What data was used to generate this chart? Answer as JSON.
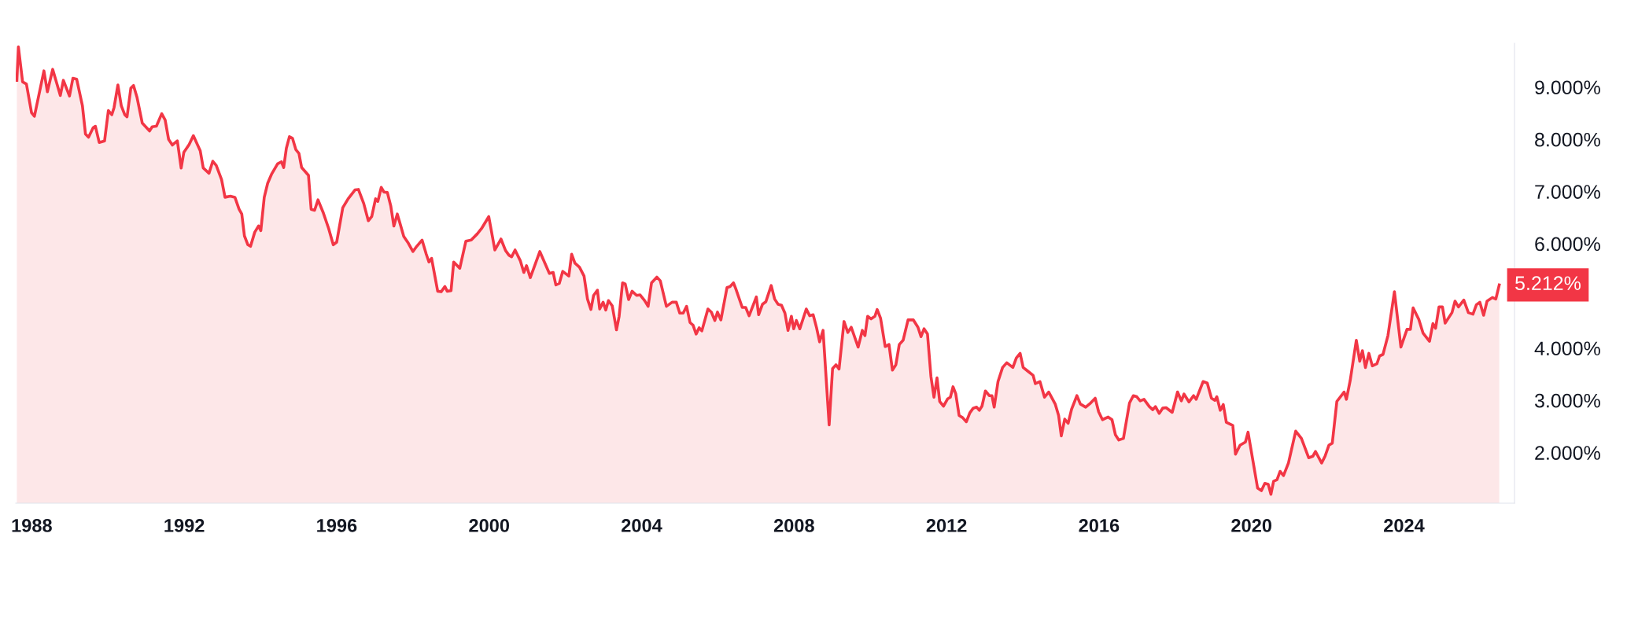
{
  "chart_data": {
    "type": "area",
    "x": [
      1987.61,
      1987.65,
      1987.76,
      1987.86,
      1987.995,
      1988.07,
      1988.32,
      1988.41,
      1988.55,
      1988.75,
      1988.83,
      1988.99,
      1989.08,
      1989.18,
      1989.33,
      1989.41,
      1989.49,
      1989.61,
      1989.67,
      1989.77,
      1989.91,
      1990.01,
      1990.1,
      1990.16,
      1990.26,
      1990.35,
      1990.44,
      1990.5,
      1990.6,
      1990.67,
      1990.76,
      1990.9,
      1991.09,
      1991.16,
      1991.27,
      1991.41,
      1991.5,
      1991.59,
      1991.69,
      1991.82,
      1991.92,
      1991.99,
      1992.13,
      1992.24,
      1992.42,
      1992.5,
      1992.65,
      1992.75,
      1992.84,
      1992.98,
      1993.07,
      1993.21,
      1993.33,
      1993.44,
      1993.51,
      1993.58,
      1993.67,
      1993.74,
      1993.85,
      1993.95,
      1994.01,
      1994.1,
      1994.19,
      1994.29,
      1994.45,
      1994.55,
      1994.61,
      1994.68,
      1994.76,
      1994.84,
      1994.93,
      1995.01,
      1995.08,
      1995.26,
      1995.33,
      1995.42,
      1995.51,
      1995.65,
      1995.79,
      1995.91,
      1996.0,
      1996.16,
      1996.3,
      1996.48,
      1996.57,
      1996.71,
      1996.83,
      1996.92,
      1997.02,
      1997.08,
      1997.17,
      1997.24,
      1997.33,
      1997.42,
      1997.5,
      1997.59,
      1997.76,
      1997.88,
      1998.0,
      1998.1,
      1998.24,
      1998.35,
      1998.42,
      1998.49,
      1998.65,
      1998.74,
      1998.84,
      1998.9,
      1999.0,
      1999.07,
      1999.23,
      1999.39,
      1999.53,
      1999.69,
      1999.8,
      1999.99,
      2000.15,
      2000.31,
      2000.43,
      2000.52,
      2000.59,
      2000.68,
      2000.82,
      2000.91,
      2000.98,
      2001.08,
      2001.33,
      2001.58,
      2001.68,
      2001.75,
      2001.84,
      2001.93,
      2002.09,
      2002.165,
      2002.25,
      2002.37,
      2002.49,
      2002.58,
      2002.67,
      2002.74,
      2002.84,
      2002.9,
      2002.99,
      2003.06,
      2003.13,
      2003.23,
      2003.34,
      2003.41,
      2003.5,
      2003.57,
      2003.66,
      2003.75,
      2003.87,
      2003.96,
      2004.08,
      2004.17,
      2004.26,
      2004.4,
      2004.49,
      2004.65,
      2004.8,
      2004.91,
      2005.0,
      2005.09,
      2005.18,
      2005.27,
      2005.35,
      2005.43,
      2005.51,
      2005.58,
      2005.74,
      2005.83,
      2005.92,
      2005.99,
      2006.08,
      2006.24,
      2006.32,
      2006.41,
      2006.47,
      2006.64,
      2006.73,
      2006.82,
      2007.01,
      2007.07,
      2007.17,
      2007.26,
      2007.4,
      2007.49,
      2007.58,
      2007.67,
      2007.76,
      2007.84,
      2007.93,
      2007.99,
      2008.06,
      2008.15,
      2008.32,
      2008.41,
      2008.5,
      2008.59,
      2008.67,
      2008.76,
      2008.92,
      2009.01,
      2009.1,
      2009.18,
      2009.31,
      2009.41,
      2009.5,
      2009.68,
      2009.79,
      2009.86,
      2009.93,
      2010.02,
      2010.12,
      2010.18,
      2010.27,
      2010.39,
      2010.49,
      2010.58,
      2010.67,
      2010.76,
      2010.86,
      2010.99,
      2011.13,
      2011.25,
      2011.33,
      2011.41,
      2011.5,
      2011.59,
      2011.67,
      2011.75,
      2011.82,
      2011.92,
      2012.03,
      2012.1,
      2012.17,
      2012.24,
      2012.33,
      2012.42,
      2012.52,
      2012.61,
      2012.7,
      2012.79,
      2012.86,
      2012.93,
      2013.02,
      2013.12,
      2013.19,
      2013.25,
      2013.35,
      2013.47,
      2013.58,
      2013.74,
      2013.83,
      2013.93,
      2014.01,
      2014.13,
      2014.27,
      2014.33,
      2014.45,
      2014.57,
      2014.68,
      2014.85,
      2014.94,
      2015.01,
      2015.1,
      2015.19,
      2015.28,
      2015.42,
      2015.51,
      2015.65,
      2015.78,
      2015.9,
      2015.99,
      2016.09,
      2016.24,
      2016.34,
      2016.43,
      2016.52,
      2016.64,
      2016.8,
      2016.9,
      2016.99,
      2017.08,
      2017.18,
      2017.32,
      2017.41,
      2017.48,
      2017.58,
      2017.67,
      2017.76,
      2017.92,
      2018.06,
      2018.16,
      2018.23,
      2018.36,
      2018.48,
      2018.55,
      2018.73,
      2018.84,
      2018.95,
      2019.04,
      2019.09,
      2019.18,
      2019.26,
      2019.34,
      2019.51,
      2019.58,
      2019.7,
      2019.84,
      2019.91,
      2020.16,
      2020.26,
      2020.35,
      2020.44,
      2020.51,
      2020.58,
      2020.67,
      2020.75,
      2020.84,
      2020.97,
      2021.16,
      2021.31,
      2021.5,
      2021.61,
      2021.68,
      2021.84,
      2021.93,
      2022.03,
      2022.12,
      2022.24,
      2022.43,
      2022.49,
      2022.59,
      2022.75,
      2022.84,
      2022.91,
      2022.99,
      2023.08,
      2023.17,
      2023.29,
      2023.36,
      2023.45,
      2023.58,
      2023.75,
      2023.92,
      2024.08,
      2024.17,
      2024.24,
      2024.39,
      2024.5,
      2024.67,
      2024.76,
      2024.83,
      2024.92,
      2025.01,
      2025.08,
      2025.26,
      2025.34,
      2025.43,
      2025.57,
      2025.69,
      2025.81,
      2025.9,
      2025.99,
      2026.09,
      2026.18,
      2026.32,
      2026.41,
      2026.5
    ],
    "series": [
      {
        "color": "#f23645",
        "values": [
          9.13,
          9.77,
          9.1,
          9.06,
          8.51,
          8.44,
          9.31,
          8.91,
          9.34,
          8.84,
          9.13,
          8.83,
          9.17,
          9.15,
          8.64,
          8.1,
          8.04,
          8.22,
          8.25,
          7.94,
          7.97,
          8.55,
          8.47,
          8.61,
          9.04,
          8.64,
          8.47,
          8.43,
          8.98,
          9.03,
          8.81,
          8.31,
          8.16,
          8.24,
          8.25,
          8.49,
          8.37,
          8.0,
          7.89,
          7.97,
          7.45,
          7.75,
          7.9,
          8.07,
          7.78,
          7.45,
          7.35,
          7.58,
          7.5,
          7.23,
          6.89,
          6.91,
          6.89,
          6.66,
          6.57,
          6.15,
          5.98,
          5.95,
          6.22,
          6.34,
          6.25,
          6.89,
          7.16,
          7.33,
          7.53,
          7.57,
          7.46,
          7.83,
          8.05,
          8.02,
          7.8,
          7.73,
          7.46,
          7.31,
          6.66,
          6.64,
          6.84,
          6.59,
          6.29,
          5.98,
          6.03,
          6.69,
          6.86,
          7.03,
          7.04,
          6.77,
          6.44,
          6.52,
          6.86,
          6.81,
          7.08,
          6.99,
          6.98,
          6.72,
          6.34,
          6.57,
          6.14,
          6.01,
          5.85,
          5.95,
          6.07,
          5.8,
          5.65,
          5.72,
          5.09,
          5.08,
          5.18,
          5.09,
          5.1,
          5.65,
          5.53,
          6.05,
          6.07,
          6.19,
          6.29,
          6.52,
          5.88,
          6.09,
          5.87,
          5.78,
          5.75,
          5.88,
          5.67,
          5.45,
          5.58,
          5.35,
          5.85,
          5.43,
          5.45,
          5.21,
          5.24,
          5.47,
          5.38,
          5.8,
          5.63,
          5.55,
          5.38,
          4.94,
          4.74,
          5.01,
          5.11,
          4.75,
          4.88,
          4.73,
          4.91,
          4.81,
          4.35,
          4.61,
          5.25,
          5.23,
          4.93,
          5.09,
          5.01,
          5.02,
          4.91,
          4.8,
          5.25,
          5.36,
          5.29,
          4.8,
          4.88,
          4.88,
          4.67,
          4.67,
          4.8,
          4.49,
          4.44,
          4.27,
          4.39,
          4.33,
          4.75,
          4.69,
          4.53,
          4.69,
          4.54,
          5.16,
          5.18,
          5.25,
          5.14,
          4.78,
          4.78,
          4.62,
          4.98,
          4.64,
          4.84,
          4.89,
          5.2,
          4.94,
          4.84,
          4.82,
          4.67,
          4.34,
          4.61,
          4.37,
          4.53,
          4.37,
          4.75,
          4.62,
          4.64,
          4.39,
          4.12,
          4.34,
          2.53,
          3.61,
          3.68,
          3.6,
          4.51,
          4.3,
          4.4,
          4.02,
          4.34,
          4.24,
          4.61,
          4.56,
          4.61,
          4.74,
          4.57,
          4.03,
          4.07,
          3.58,
          3.68,
          4.07,
          4.15,
          4.54,
          4.54,
          4.4,
          4.22,
          4.37,
          4.27,
          3.46,
          3.06,
          3.43,
          2.98,
          2.89,
          3.03,
          3.06,
          3.26,
          3.13,
          2.71,
          2.67,
          2.59,
          2.76,
          2.85,
          2.87,
          2.81,
          2.89,
          3.18,
          3.09,
          3.09,
          2.87,
          3.36,
          3.63,
          3.72,
          3.63,
          3.81,
          3.9,
          3.63,
          3.56,
          3.48,
          3.32,
          3.36,
          3.06,
          3.16,
          2.93,
          2.71,
          2.32,
          2.64,
          2.56,
          2.83,
          3.09,
          2.93,
          2.87,
          2.95,
          3.04,
          2.78,
          2.63,
          2.68,
          2.63,
          2.34,
          2.24,
          2.27,
          2.95,
          3.09,
          3.07,
          2.99,
          3.02,
          2.88,
          2.82,
          2.88,
          2.75,
          2.85,
          2.86,
          2.77,
          3.16,
          2.99,
          3.12,
          2.97,
          3.09,
          3.02,
          3.36,
          3.33,
          3.04,
          3.0,
          3.07,
          2.81,
          2.92,
          2.58,
          2.52,
          1.97,
          2.14,
          2.2,
          2.39,
          1.32,
          1.27,
          1.41,
          1.39,
          1.2,
          1.45,
          1.48,
          1.64,
          1.56,
          1.8,
          2.41,
          2.27,
          1.9,
          1.93,
          2.02,
          1.8,
          1.93,
          2.14,
          2.18,
          2.98,
          3.16,
          3.02,
          3.38,
          4.15,
          3.75,
          3.95,
          3.63,
          3.9,
          3.66,
          3.7,
          3.85,
          3.88,
          4.24,
          5.08,
          4.02,
          4.36,
          4.36,
          4.77,
          4.55,
          4.29,
          4.13,
          4.47,
          4.38,
          4.79,
          4.79,
          4.48,
          4.68,
          4.9,
          4.79,
          4.92,
          4.68,
          4.65,
          4.83,
          4.88,
          4.63,
          4.9,
          4.97,
          4.94,
          5.21
        ]
      }
    ],
    "annotations": [
      {
        "text": "5.212%",
        "x": 2026.5,
        "y": 5.212
      }
    ],
    "xlim": [
      1987.58,
      2026.9
    ],
    "xticks": [
      1988,
      1992,
      1996,
      2000,
      2004,
      2008,
      2012,
      2016,
      2020,
      2024
    ],
    "ylim": [
      1.03,
      9.84
    ],
    "yticks": [
      {
        "value": 2,
        "label": "2.000%"
      },
      {
        "value": 3,
        "label": "3.000%"
      },
      {
        "value": 4,
        "label": "4.000%"
      },
      {
        "value": 6,
        "label": "6.000%"
      },
      {
        "value": 7,
        "label": "7.000%"
      },
      {
        "value": 8,
        "label": "8.000%"
      },
      {
        "value": 9,
        "label": "9.000%"
      }
    ],
    "grid": false
  }
}
